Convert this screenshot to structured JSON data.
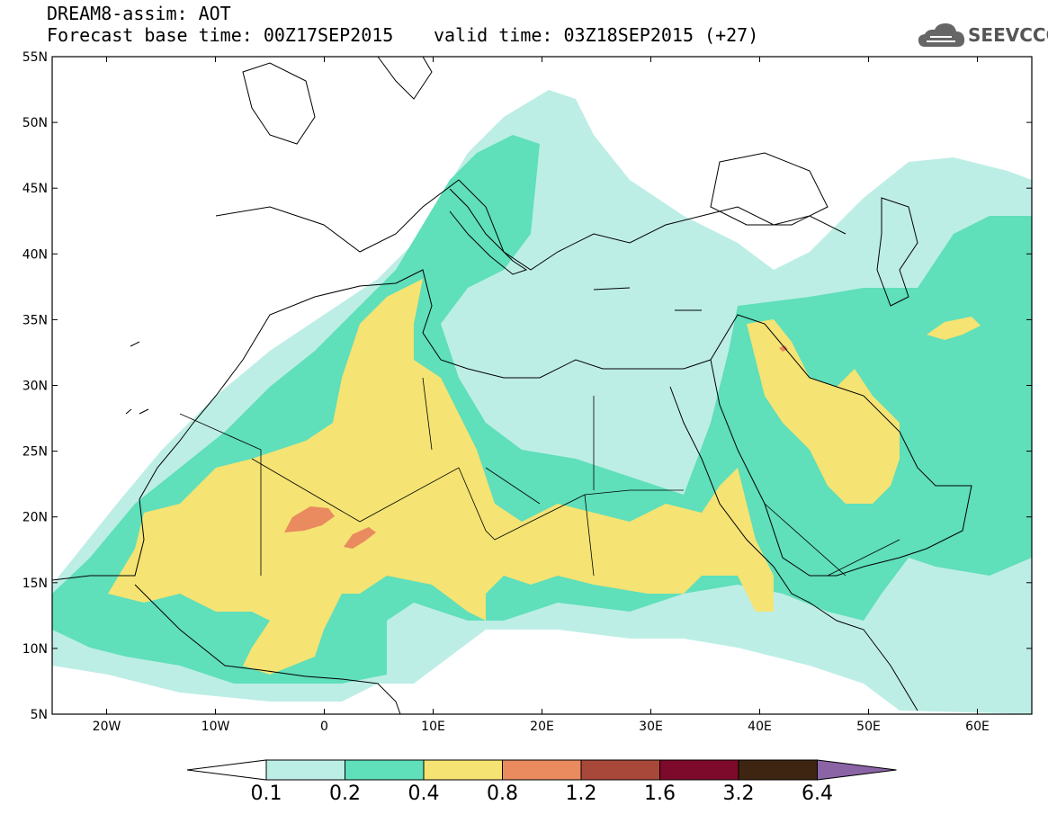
{
  "header": {
    "title": "DREAM8-assim: AOT",
    "base_time": "Forecast base time: 00Z17SEP2015",
    "valid_time": "valid time: 03Z18SEP2015 (+27)"
  },
  "logo": {
    "text": "SEEVCCC",
    "icon": "cloud-icon"
  },
  "axes": {
    "lat_labels": [
      "55N",
      "50N",
      "45N",
      "40N",
      "35N",
      "30N",
      "25N",
      "20N",
      "15N",
      "10N",
      "5N"
    ],
    "lon_labels": [
      "20W",
      "10W",
      "0",
      "10E",
      "20E",
      "30E",
      "40E",
      "50E",
      "60E"
    ],
    "lon_range": [
      -25,
      65
    ],
    "lat_range": [
      5,
      55
    ]
  },
  "colorbar": {
    "labels": [
      "0.1",
      "0.2",
      "0.4",
      "0.8",
      "1.2",
      "1.6",
      "3.2",
      "6.4"
    ],
    "colors": [
      "#ffffff",
      "#bdeee6",
      "#5fdfba",
      "#f5e373",
      "#e98a5f",
      "#a8483a",
      "#7d0a2a",
      "#3d2511",
      "#8b64a5"
    ]
  },
  "fields": {
    "colors": {
      "low": "#bdeee6",
      "mid": "#5fdfba",
      "high": "#f5e373",
      "vhigh": "#e98a5f"
    }
  }
}
